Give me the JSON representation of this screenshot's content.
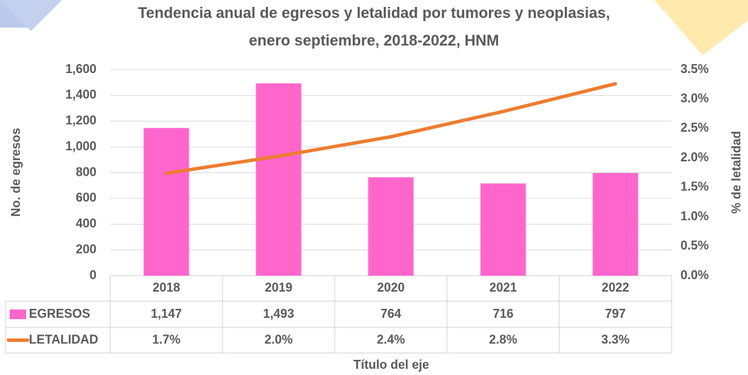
{
  "chart_data": {
    "type": "bar",
    "title": "Tendencia anual de egresos y letalidad por tumores y neoplasias,",
    "subtitle": "enero septiembre, 2018-2022, HNM",
    "y_label": "No. de egresos",
    "y2_label": "% de letalidad",
    "x_label": "Título del eje",
    "categories": [
      "2018",
      "2019",
      "2020",
      "2021",
      "2022"
    ],
    "series": [
      {
        "name": "EGRESOS",
        "color": "#ff66cc",
        "values": [
          1147,
          1493,
          764,
          716,
          797
        ],
        "value_labels": [
          "1,147",
          "1,493",
          "764",
          "716",
          "797"
        ]
      },
      {
        "name": "LETALIDAD",
        "type": "line",
        "axis": "y2",
        "color": "#ed7d31",
        "values": [
          1.74,
          2.03,
          2.36,
          2.79,
          3.26
        ],
        "value_labels": [
          "1.7%",
          "2.0%",
          "2.4%",
          "2.8%",
          "3.3%"
        ]
      }
    ],
    "ylim": [
      0,
      1600
    ],
    "yticks": [
      0,
      200,
      400,
      600,
      800,
      {
        "value": 1000,
        "label": "1,000"
      },
      {
        "value": 1200,
        "label": "1,200"
      },
      {
        "value": 1400,
        "label": "1,400"
      },
      {
        "value": 1600,
        "label": "1,600"
      }
    ],
    "y2lim": [
      0,
      3.5
    ],
    "y2ticks": [
      {
        "value": 0,
        "label": "0.0%"
      },
      {
        "value": 0.5,
        "label": "0.5%"
      },
      {
        "value": 1,
        "label": "1.0%"
      },
      {
        "value": 1.5,
        "label": "1.5%"
      },
      {
        "value": 2,
        "label": "2.0%"
      },
      {
        "value": 2.5,
        "label": "2.5%"
      },
      {
        "value": 3,
        "label": "3.0%"
      },
      {
        "value": 3.5,
        "label": "3.5%"
      }
    ],
    "grid": true
  }
}
